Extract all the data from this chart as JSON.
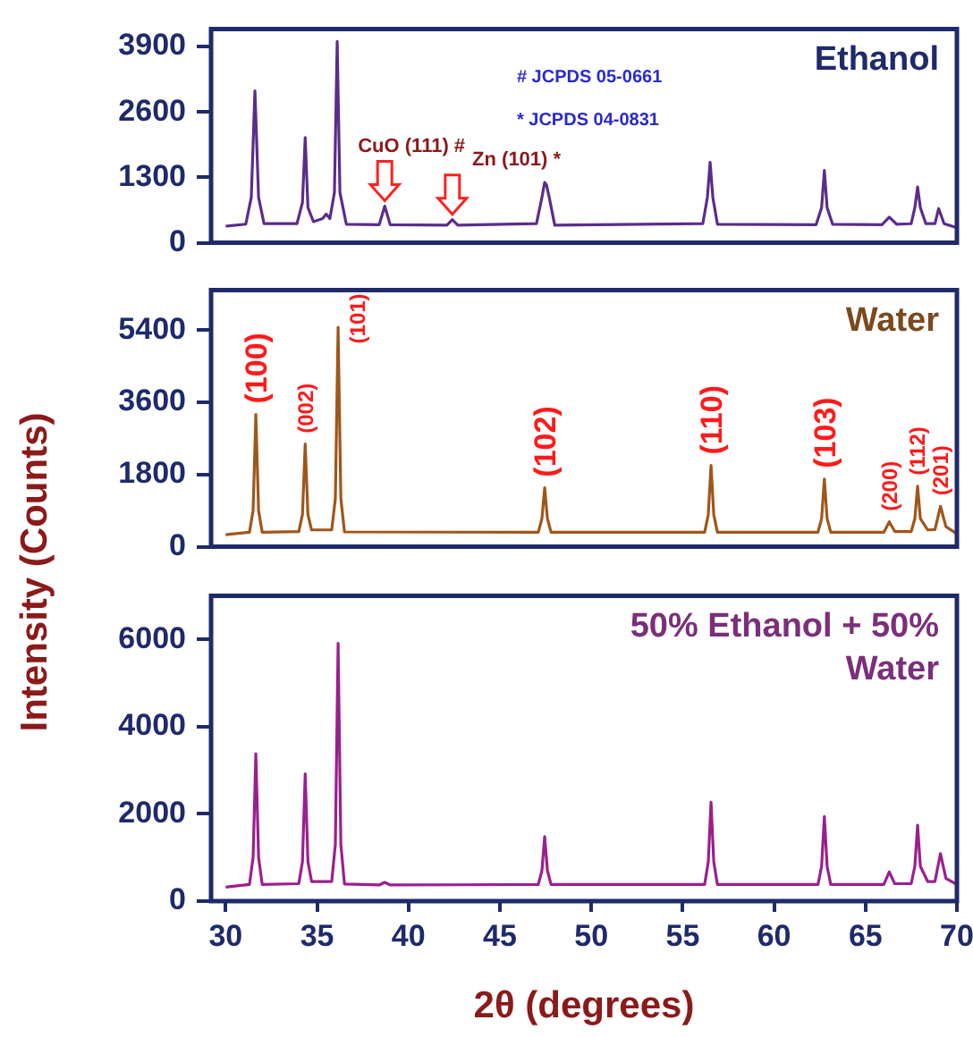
{
  "chart_data": [
    {
      "type": "line",
      "title": "Ethanol",
      "xlim": [
        29.2,
        70
      ],
      "ylim": [
        0,
        4250
      ],
      "yticks": [
        0,
        1300,
        2600,
        3900
      ],
      "tick_labels": "y",
      "series": [
        {
          "color": "#5b2c8c",
          "x": [
            30,
            31.1,
            31.4,
            31.6,
            31.8,
            32.1,
            33.9,
            34.2,
            34.35,
            34.5,
            34.8,
            35.3,
            35.5,
            35.7,
            35.95,
            36.1,
            36.25,
            36.6,
            38.4,
            38.7,
            39.0,
            42.1,
            42.4,
            42.7,
            47.0,
            47.3,
            47.45,
            47.55,
            47.7,
            48.0,
            56.1,
            56.35,
            56.5,
            56.65,
            56.9,
            62.3,
            62.6,
            62.75,
            62.9,
            63.2,
            65.9,
            66.3,
            66.7,
            67.5,
            67.7,
            67.85,
            68.0,
            68.3,
            68.8,
            69.0,
            69.3,
            70
          ],
          "values": [
            330,
            370,
            900,
            3020,
            900,
            380,
            380,
            800,
            2090,
            700,
            420,
            480,
            570,
            480,
            1000,
            4000,
            1000,
            370,
            360,
            730,
            360,
            350,
            460,
            350,
            380,
            900,
            1200,
            1150,
            900,
            350,
            380,
            900,
            1600,
            900,
            370,
            360,
            700,
            1440,
            700,
            370,
            360,
            510,
            370,
            380,
            700,
            1110,
            700,
            380,
            380,
            680,
            380,
            300
          ]
        }
      ],
      "annotations": [
        "# JCPDS 05-0661",
        "* JCPDS 04-0831",
        {
          "text": "CuO (111) #",
          "x": 38.7,
          "y": 730
        },
        {
          "text": "Zn (101) *",
          "x": 42.4,
          "y": 460
        }
      ]
    },
    {
      "type": "line",
      "title": "Water",
      "ylabel": "Intensity (Counts)",
      "xlim": [
        29.2,
        70
      ],
      "ylim": [
        0,
        6400
      ],
      "yticks": [
        0,
        1800,
        3600,
        5400
      ],
      "tick_labels": "y",
      "series": [
        {
          "color": "#a0561a",
          "x": [
            30,
            31.3,
            31.5,
            31.65,
            31.8,
            32.0,
            34.0,
            34.2,
            34.35,
            34.5,
            34.7,
            35.8,
            36.0,
            36.15,
            36.3,
            36.5,
            47.1,
            47.3,
            47.45,
            47.6,
            47.8,
            56.2,
            56.4,
            56.55,
            56.7,
            56.9,
            62.4,
            62.6,
            62.75,
            62.9,
            63.1,
            66.0,
            66.3,
            66.6,
            67.5,
            67.7,
            67.85,
            68.0,
            68.4,
            68.8,
            69.1,
            69.4,
            70
          ],
          "values": [
            300,
            360,
            900,
            3300,
            900,
            360,
            380,
            800,
            2560,
            800,
            420,
            420,
            1200,
            5470,
            1200,
            370,
            360,
            700,
            1470,
            700,
            360,
            360,
            800,
            2030,
            800,
            360,
            360,
            700,
            1690,
            700,
            360,
            360,
            620,
            380,
            380,
            700,
            1510,
            700,
            420,
            430,
            1010,
            500,
            320
          ]
        }
      ],
      "annotations": [
        {
          "text": "(100)",
          "x": 31.65,
          "y": 3300
        },
        {
          "text": "(002)",
          "x": 34.35,
          "y": 2560
        },
        {
          "text": "(101)",
          "x": 36.15,
          "y": 5470
        },
        {
          "text": "(102)",
          "x": 47.45,
          "y": 1470
        },
        {
          "text": "(110)",
          "x": 56.55,
          "y": 2030
        },
        {
          "text": "(103)",
          "x": 62.75,
          "y": 1690
        },
        {
          "text": "(200)",
          "x": 66.3,
          "y": 620
        },
        {
          "text": "(112)",
          "x": 67.85,
          "y": 1510
        },
        {
          "text": "(201)",
          "x": 69.1,
          "y": 1010
        }
      ]
    },
    {
      "type": "line",
      "title": "50% Ethanol + 50% Water",
      "xlabel": "2θ (degrees)",
      "xlim": [
        29.2,
        70
      ],
      "ylim": [
        0,
        7000
      ],
      "xticks": [
        30,
        35,
        40,
        45,
        50,
        55,
        60,
        65,
        70
      ],
      "yticks": [
        0,
        2000,
        4000,
        6000
      ],
      "series": [
        {
          "color": "#9b1f8f",
          "x": [
            30,
            31.3,
            31.5,
            31.65,
            31.8,
            32.0,
            34.0,
            34.2,
            34.35,
            34.5,
            34.7,
            35.8,
            36.0,
            36.15,
            36.3,
            36.5,
            38.4,
            38.7,
            39.0,
            47.1,
            47.3,
            47.45,
            47.6,
            47.8,
            56.2,
            56.4,
            56.55,
            56.7,
            56.9,
            62.4,
            62.6,
            62.75,
            62.9,
            63.1,
            66.0,
            66.3,
            66.6,
            67.5,
            67.7,
            67.85,
            68.0,
            68.4,
            68.8,
            69.1,
            69.4,
            70
          ],
          "values": [
            320,
            380,
            1000,
            3380,
            1000,
            380,
            400,
            900,
            2920,
            900,
            450,
            450,
            1300,
            5910,
            1300,
            390,
            370,
            430,
            370,
            380,
            700,
            1480,
            700,
            380,
            380,
            900,
            2270,
            900,
            380,
            380,
            800,
            1940,
            800,
            380,
            380,
            670,
            400,
            400,
            800,
            1740,
            800,
            450,
            450,
            1090,
            520,
            380
          ]
        }
      ]
    }
  ]
}
